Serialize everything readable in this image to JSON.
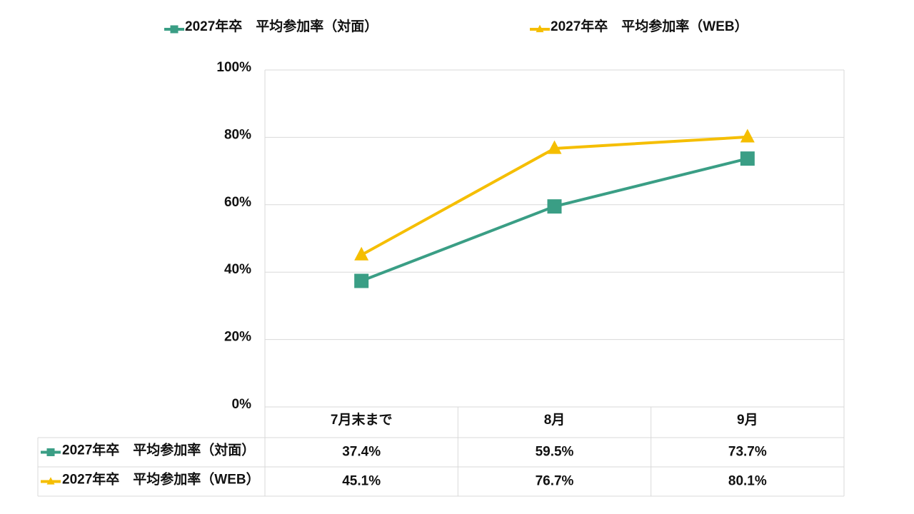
{
  "chart_data": {
    "type": "line",
    "categories": [
      "7月末まで",
      "8月",
      "9月"
    ],
    "series": [
      {
        "name": "2027年卒　平均参加率（対面）",
        "color": "#3a9e85",
        "marker": "square",
        "values": [
          37.4,
          59.5,
          73.7
        ],
        "value_labels": [
          "37.4%",
          "59.5%",
          "73.7%"
        ]
      },
      {
        "name": "2027年卒　平均参加率（WEB）",
        "color": "#f5be00",
        "marker": "triangle",
        "values": [
          45.1,
          76.7,
          80.1
        ],
        "value_labels": [
          "45.1%",
          "76.7%",
          "80.1%"
        ]
      }
    ],
    "ylim": [
      0,
      100
    ],
    "yticks": [
      {
        "value": 0,
        "label": "0%"
      },
      {
        "value": 20,
        "label": "20%"
      },
      {
        "value": 40,
        "label": "40%"
      },
      {
        "value": 60,
        "label": "60%"
      },
      {
        "value": 80,
        "label": "80%"
      },
      {
        "value": 100,
        "label": "100%"
      }
    ],
    "grid": true,
    "legend": "top",
    "data_table": true
  }
}
